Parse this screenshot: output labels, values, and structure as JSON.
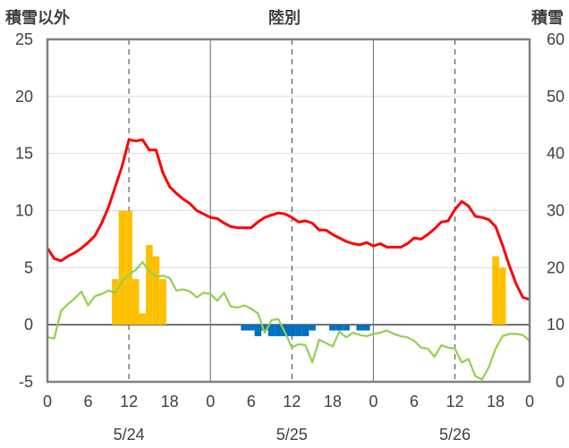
{
  "chart_data": {
    "type": "bar+line",
    "title": "陸別",
    "left_axis_label": "積雪以外",
    "right_axis_label": "積雪",
    "ylim_left": [
      -5,
      25
    ],
    "yticks_left": [
      -5,
      0,
      5,
      10,
      15,
      20,
      25
    ],
    "ylim_right": [
      0,
      60
    ],
    "yticks_right": [
      0,
      10,
      20,
      30,
      40,
      50,
      60
    ],
    "xlim": [
      0,
      71
    ],
    "x_tick_labels": [
      "0",
      "6",
      "12",
      "18",
      "0",
      "6",
      "12",
      "18",
      "0",
      "6",
      "12",
      "18",
      "0"
    ],
    "day_labels": [
      "5/24",
      "5/25",
      "5/26"
    ],
    "grid": true,
    "colors": {
      "temperature": "#ff0000",
      "precipitation": "#ffc000",
      "snow_depth_change": "#0070c0",
      "other": "#92d050",
      "frame": "#808080",
      "zero_line": "#404040"
    },
    "series": [
      {
        "key": "temperature",
        "style": "line",
        "color": "#ff0000",
        "axis": "left",
        "values": [
          6.7,
          5.8,
          5.6,
          6.0,
          6.3,
          6.7,
          7.2,
          7.8,
          8.9,
          10.3,
          12.1,
          13.9,
          16.2,
          16.1,
          16.2,
          15.3,
          15.3,
          13.3,
          12.1,
          11.5,
          11.0,
          10.6,
          10.0,
          9.7,
          9.4,
          9.3,
          8.9,
          8.6,
          8.5,
          8.5,
          8.5,
          9.0,
          9.4,
          9.6,
          9.8,
          9.7,
          9.4,
          9.0,
          9.1,
          8.9,
          8.3,
          8.3,
          7.9,
          7.6,
          7.3,
          7.1,
          7.0,
          7.2,
          6.9,
          7.1,
          6.8,
          6.8,
          6.8,
          7.1,
          7.6,
          7.5,
          7.9,
          8.4,
          9.0,
          9.1,
          10.1,
          10.8,
          10.4,
          9.5,
          9.4,
          9.2,
          8.6,
          7.0,
          5.2,
          3.6,
          2.4,
          2.2
        ]
      },
      {
        "key": "other",
        "style": "line",
        "color": "#92d050",
        "axis": "left",
        "values": [
          -1.1,
          -1.2,
          1.2,
          1.8,
          2.3,
          2.9,
          1.7,
          2.5,
          2.7,
          3.0,
          2.8,
          3.8,
          4.4,
          4.8,
          5.5,
          4.7,
          4.2,
          4.3,
          4.1,
          3.0,
          3.1,
          2.9,
          2.4,
          2.8,
          2.7,
          2.1,
          2.8,
          1.6,
          1.5,
          1.7,
          1.4,
          1.0,
          -0.7,
          0.4,
          0.5,
          -0.7,
          -2.0,
          -1.7,
          -1.8,
          -3.3,
          -1.3,
          -1.6,
          -1.9,
          -0.6,
          -1.1,
          -0.7,
          -0.9,
          -1.0,
          -0.8,
          -0.7,
          -0.5,
          -0.8,
          -1.0,
          -1.1,
          -1.4,
          -2.0,
          -2.1,
          -2.8,
          -1.8,
          -2.0,
          -2.1,
          -3.3,
          -3.0,
          -4.5,
          -4.8,
          -3.7,
          -2.1,
          -1.0,
          -0.8,
          -0.8,
          -0.9,
          -1.4
        ]
      },
      {
        "key": "precipitation",
        "style": "bar",
        "color": "#ffc000",
        "axis": "left",
        "values": [
          0,
          0,
          0,
          0,
          0,
          0,
          0,
          0,
          0,
          0,
          4,
          10,
          10,
          4,
          1,
          7,
          6,
          4,
          0,
          0,
          0,
          0,
          0,
          0,
          0,
          0,
          0,
          0,
          0,
          0,
          0,
          0,
          0,
          0,
          0,
          0,
          0,
          0,
          0,
          0,
          0,
          0,
          0,
          0,
          0,
          0,
          0,
          0,
          0,
          0,
          0,
          0,
          0,
          0,
          0,
          0,
          0,
          0,
          0,
          0,
          0,
          0,
          0,
          0,
          0,
          0,
          6,
          5,
          0,
          0,
          0,
          0
        ]
      },
      {
        "key": "snow_depth_change",
        "style": "bar",
        "color": "#0070c0",
        "axis": "left",
        "values": [
          0,
          0,
          0,
          0,
          0,
          0,
          0,
          0,
          0,
          0,
          0,
          0,
          0,
          0,
          0,
          0,
          0,
          0,
          0,
          0,
          0,
          0,
          0,
          0,
          0,
          0,
          0,
          0,
          0,
          -0.5,
          -0.5,
          -1.0,
          -0.5,
          -1.0,
          -1.0,
          -1.0,
          -1.0,
          -1.0,
          -1.0,
          -0.5,
          0,
          0,
          -0.5,
          -0.5,
          -0.5,
          0,
          -0.5,
          -0.5,
          0,
          0,
          0,
          0,
          0,
          0,
          0,
          0,
          0,
          0,
          0,
          0,
          0,
          0,
          0,
          0,
          0,
          0,
          0,
          0,
          0,
          0,
          0,
          0
        ]
      }
    ]
  }
}
